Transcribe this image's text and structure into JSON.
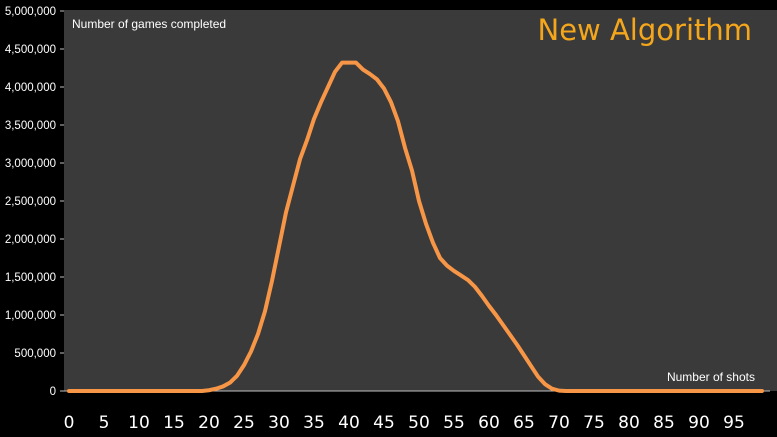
{
  "chart_data": {
    "type": "line",
    "title": "New Algorithm",
    "xlabel": "Number of shots",
    "ylabel": "Number of games completed",
    "xlim": [
      0,
      100
    ],
    "ylim": [
      0,
      5000000
    ],
    "grid": false,
    "legend": "none",
    "x_ticks": [
      "0",
      "5",
      "10",
      "15",
      "20",
      "25",
      "30",
      "35",
      "40",
      "45",
      "50",
      "55",
      "60",
      "65",
      "70",
      "75",
      "80",
      "85",
      "90",
      "95"
    ],
    "y_ticks": [
      "0",
      "500,000",
      "1,000,000",
      "1,500,000",
      "2,000,000",
      "2,500,000",
      "3,000,000",
      "3,500,000",
      "4,000,000",
      "4,500,000",
      "5,000,000"
    ],
    "colors": {
      "line": "#f79646",
      "plot_background": "#3a3a3a",
      "background": "#000000",
      "title": "#f5a71c",
      "text": "#ffffff"
    },
    "series": [
      {
        "x": [
          0,
          5,
          10,
          15,
          19,
          20,
          21,
          22,
          23,
          24,
          25,
          26,
          27,
          28,
          29,
          30,
          31,
          32,
          33,
          34,
          35,
          36,
          37,
          38,
          39,
          40,
          41,
          42,
          43,
          44,
          45,
          46,
          47,
          48,
          49,
          50,
          51,
          52,
          53,
          54,
          55,
          56,
          57,
          58,
          59,
          60,
          61,
          62,
          63,
          64,
          65,
          66,
          67,
          68,
          69,
          70,
          71,
          72,
          75,
          80,
          85,
          90,
          95,
          99
        ],
        "values": [
          0,
          0,
          0,
          0,
          0,
          10000,
          30000,
          60000,
          110000,
          200000,
          340000,
          520000,
          750000,
          1050000,
          1450000,
          1900000,
          2350000,
          2700000,
          3050000,
          3300000,
          3580000,
          3800000,
          4000000,
          4200000,
          4320000,
          4320000,
          4320000,
          4230000,
          4170000,
          4100000,
          3980000,
          3800000,
          3550000,
          3200000,
          2900000,
          2500000,
          2200000,
          1950000,
          1750000,
          1650000,
          1580000,
          1520000,
          1460000,
          1370000,
          1250000,
          1120000,
          1000000,
          870000,
          740000,
          610000,
          470000,
          330000,
          190000,
          90000,
          30000,
          5000,
          0,
          0,
          0,
          0,
          0,
          0,
          0,
          0
        ]
      }
    ]
  }
}
